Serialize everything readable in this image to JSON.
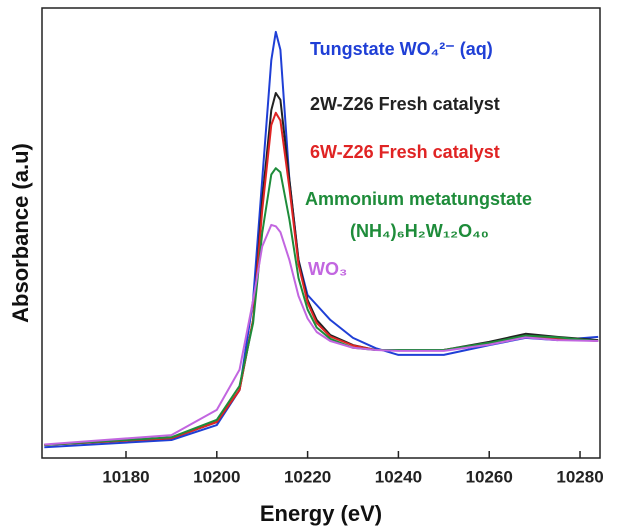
{
  "chart_data": {
    "type": "line",
    "x_label": "Energy (eV)",
    "y_label": "Absorbance (a.u)",
    "x": [
      10162,
      10190,
      10200,
      10205,
      10208,
      10210,
      10212,
      10213,
      10214,
      10216,
      10218,
      10220,
      10222,
      10225,
      10230,
      10235,
      10240,
      10250,
      10260,
      10268,
      10275,
      10284
    ],
    "xlim": [
      10161.5,
      10284.4
    ],
    "xticks": [
      10180,
      10200,
      10220,
      10240,
      10260,
      10280
    ],
    "ylim": [
      0,
      1
    ],
    "series": [
      {
        "name": "Tungstate WO₄²⁻ (aq)",
        "color": "#1f3fd6",
        "values": [
          0.024,
          0.04,
          0.073,
          0.151,
          0.351,
          0.618,
          0.884,
          0.947,
          0.907,
          0.618,
          0.44,
          0.362,
          0.34,
          0.307,
          0.267,
          0.244,
          0.229,
          0.229,
          0.251,
          0.267,
          0.262,
          0.269
        ]
      },
      {
        "name": "2W-Z26 Fresh catalyst",
        "color": "#222222",
        "values": [
          0.029,
          0.044,
          0.08,
          0.151,
          0.307,
          0.573,
          0.773,
          0.811,
          0.796,
          0.618,
          0.44,
          0.351,
          0.307,
          0.273,
          0.251,
          0.24,
          0.24,
          0.24,
          0.258,
          0.276,
          0.269,
          0.262
        ]
      },
      {
        "name": "6W-Z26 Fresh catalyst",
        "color": "#e02424",
        "values": [
          0.029,
          0.044,
          0.08,
          0.151,
          0.307,
          0.55,
          0.74,
          0.767,
          0.75,
          0.6,
          0.43,
          0.345,
          0.3,
          0.27,
          0.25,
          0.24,
          0.24,
          0.24,
          0.255,
          0.27,
          0.265,
          0.26
        ]
      },
      {
        "name": "Ammonium metatungstate",
        "formula": "(NH₄)₆H₂W₁₂O₄₀",
        "color": "#1e8c3a",
        "values": [
          0.029,
          0.046,
          0.085,
          0.16,
          0.3,
          0.5,
          0.63,
          0.644,
          0.635,
          0.53,
          0.4,
          0.33,
          0.29,
          0.265,
          0.245,
          0.24,
          0.24,
          0.24,
          0.256,
          0.272,
          0.268,
          0.26
        ]
      },
      {
        "name": "WO₃",
        "color": "#c266e0",
        "values": [
          0.03,
          0.051,
          0.107,
          0.196,
          0.35,
          0.47,
          0.518,
          0.515,
          0.502,
          0.44,
          0.36,
          0.31,
          0.28,
          0.26,
          0.245,
          0.24,
          0.238,
          0.238,
          0.252,
          0.268,
          0.262,
          0.26
        ]
      }
    ]
  }
}
